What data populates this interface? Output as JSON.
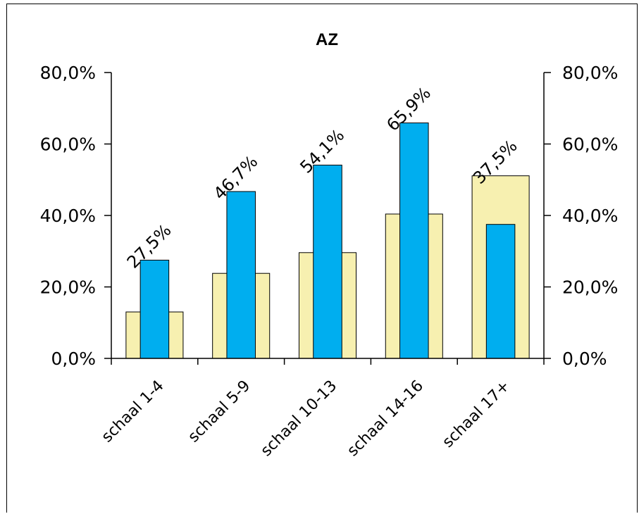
{
  "chart_data": {
    "type": "bar",
    "title": "AZ",
    "categories": [
      "schaal 1-4",
      "schaal 5-9",
      "schaal 10-13",
      "schaal 14-16",
      "schaal 17+"
    ],
    "series": [
      {
        "values": [
          13.0,
          23.8,
          29.6,
          40.4,
          51.1
        ],
        "color": "#f7f0b0",
        "axis": "secondary"
      },
      {
        "values": [
          27.5,
          46.7,
          54.1,
          65.9,
          37.5
        ],
        "color": "#00aeef",
        "axis": "primary",
        "labels": [
          "27,5%",
          "46,7%",
          "54,1%",
          "65,9%",
          "37,5%"
        ]
      }
    ],
    "ylim": [
      0,
      80
    ],
    "y_ticks": [
      "0,0%",
      "20,0%",
      "40,0%",
      "60,0%",
      "80,0%"
    ],
    "y2_ticks": [
      "0,0%",
      "20,0%",
      "40,0%",
      "60,0%",
      "80,0%"
    ],
    "grid": false,
    "legend": "none"
  }
}
